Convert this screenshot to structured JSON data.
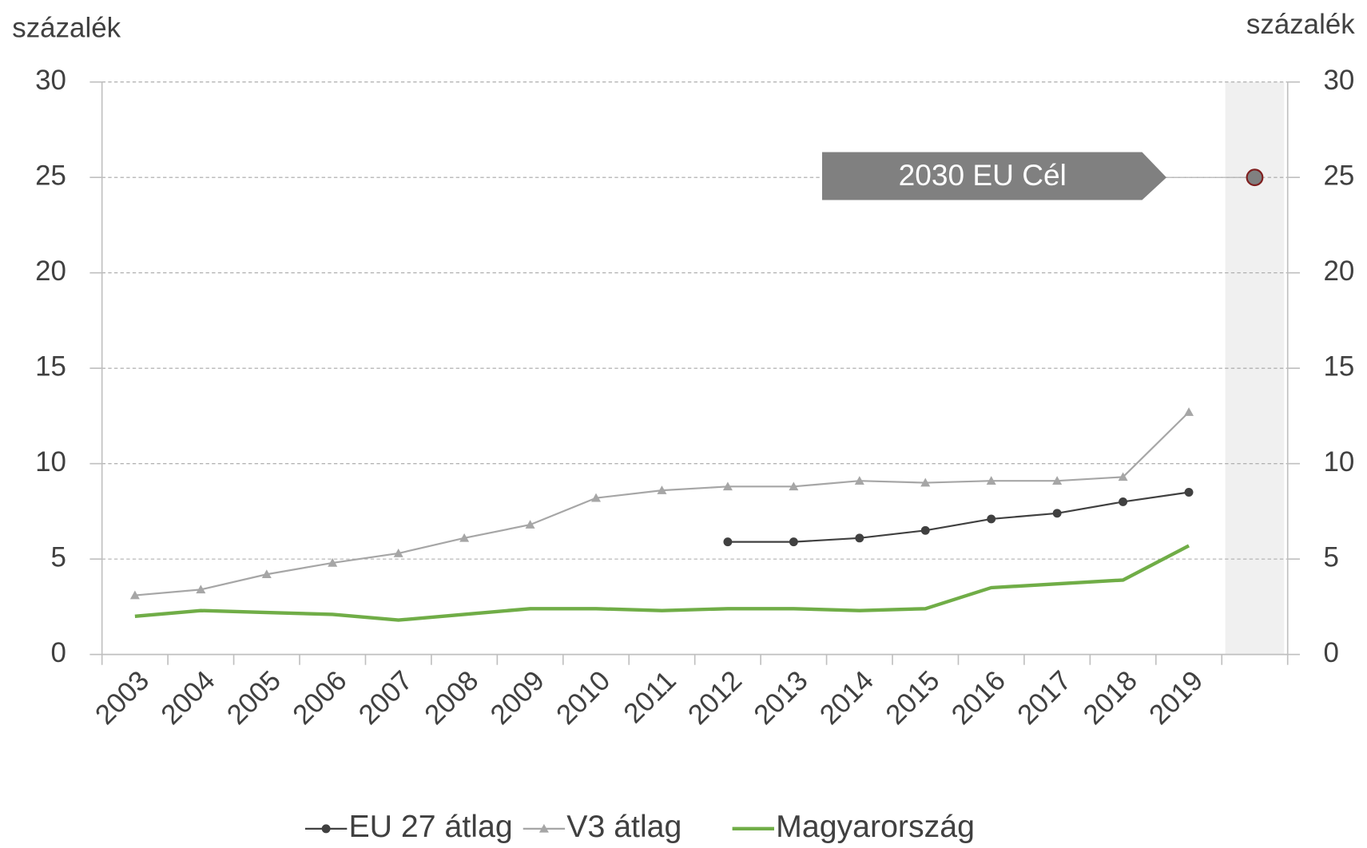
{
  "chart_data": {
    "type": "line",
    "ylabel": "százalék",
    "y2label": "százalék",
    "categories": [
      "2003",
      "2004",
      "2005",
      "2006",
      "2007",
      "2008",
      "2009",
      "2010",
      "2011",
      "2012",
      "2013",
      "2014",
      "2015",
      "2016",
      "2017",
      "2018",
      "2019",
      null
    ],
    "series": [
      {
        "name": "EU 27 átlag",
        "color": "#404040",
        "marker": "circle",
        "values": [
          null,
          null,
          null,
          null,
          null,
          null,
          null,
          null,
          null,
          5.9,
          5.9,
          6.1,
          6.5,
          7.1,
          7.4,
          8.0,
          8.5,
          null
        ]
      },
      {
        "name": "V3 átlag",
        "color": "#a6a6a6",
        "marker": "triangle",
        "values": [
          3.1,
          3.4,
          4.2,
          4.8,
          5.3,
          6.1,
          6.8,
          8.2,
          8.6,
          8.8,
          8.8,
          9.1,
          9.0,
          9.1,
          9.1,
          9.3,
          12.7,
          null
        ]
      },
      {
        "name": "Magyarország",
        "color": "#70ad47",
        "marker": "none",
        "values": [
          2.0,
          2.3,
          2.2,
          2.1,
          1.8,
          2.1,
          2.4,
          2.4,
          2.3,
          2.4,
          2.4,
          2.3,
          2.4,
          3.5,
          3.7,
          3.9,
          5.7,
          null
        ]
      }
    ],
    "target": {
      "text": "2030 EU Cél",
      "value": 25,
      "color": "#808080"
    },
    "ylim": [
      0,
      30
    ],
    "yticks": [
      0,
      5,
      10,
      15,
      20,
      25,
      30
    ],
    "y2lim": [
      0,
      30
    ],
    "y2ticks": [
      0,
      5,
      10,
      15,
      20,
      25,
      30
    ],
    "grid": true,
    "legend": "bottom"
  }
}
